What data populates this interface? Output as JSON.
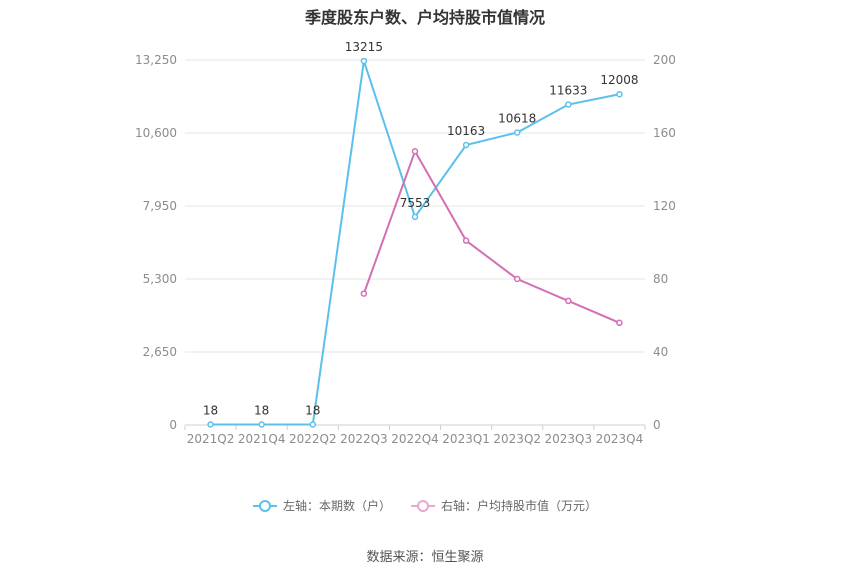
{
  "header": {
    "title": "季度股东户数、户均持股市值情况"
  },
  "source": "数据来源：恒生聚源",
  "chart_data": {
    "type": "line",
    "title": "季度股东户数、户均持股市值情况",
    "categories": [
      "2021Q2",
      "2021Q4",
      "2022Q2",
      "2022Q3",
      "2022Q4",
      "2023Q1",
      "2023Q2",
      "2023Q3",
      "2023Q4"
    ],
    "series": [
      {
        "name": "左轴：本期数（户）",
        "axis": "left",
        "color": "#5bc0eb",
        "values": [
          18,
          18,
          18,
          13215,
          7553,
          10163,
          10618,
          11633,
          12008
        ],
        "data_labels": [
          "18",
          "18",
          "18",
          "13215",
          "7553",
          "10163",
          "10618",
          "11633",
          "12008"
        ]
      },
      {
        "name": "右轴：户均持股市值（万元）",
        "axis": "right",
        "color": "#d46fb3",
        "values": [
          null,
          null,
          null,
          72,
          150,
          101,
          80,
          68,
          56
        ]
      }
    ],
    "left_axis": {
      "min": 0,
      "max": 13250,
      "ticks": [
        0,
        2650,
        5300,
        7950,
        10600,
        13250
      ],
      "tick_labels": [
        "0",
        "2,650",
        "5,300",
        "7,950",
        "10,600",
        "13,250"
      ]
    },
    "right_axis": {
      "min": 0,
      "max": 200,
      "ticks": [
        0,
        40,
        80,
        120,
        160,
        200
      ],
      "tick_labels": [
        "0",
        "40",
        "80",
        "120",
        "160",
        "200"
      ]
    },
    "grid": true,
    "legend_position": "bottom"
  }
}
